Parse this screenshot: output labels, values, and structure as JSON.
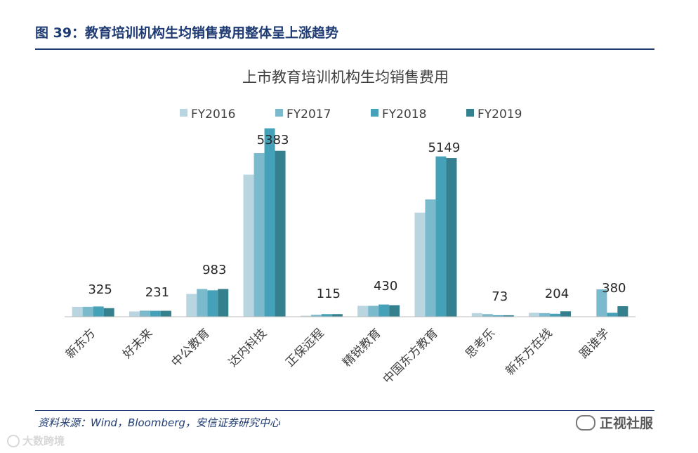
{
  "figure": {
    "title": "图 39：教育培训机构生均销售费用整体呈上涨趋势",
    "source": "资料来源：Wind，Bloomberg，安信证券研究中心"
  },
  "watermarks": {
    "right": "正视社服",
    "left": "大数跨境"
  },
  "colors": {
    "FY2016": "#b9d6e0",
    "FY2017": "#7bbacd",
    "FY2018": "#45a1b7",
    "FY2019": "#35808f",
    "axis": "#bfbfbf",
    "text": "#404040"
  },
  "chart_data": {
    "type": "bar",
    "title": "上市教育培训机构生均销售费用",
    "categories": [
      "新东方",
      "好未来",
      "中公教育",
      "达内科技",
      "正保远程",
      "精锐教育",
      "中国东方教育",
      "思考乐",
      "新东方在线",
      "跟谁学"
    ],
    "series": [
      {
        "name": "FY2016",
        "values": [
          300,
          160,
          690,
          4300,
          30,
          330,
          3150,
          110,
          120,
          0
        ]
      },
      {
        "name": "FY2017",
        "values": [
          300,
          185,
          840,
          4950,
          60,
          330,
          3550,
          80,
          110,
          830
        ]
      },
      {
        "name": "FY2018",
        "values": [
          310,
          180,
          800,
          5700,
          80,
          370,
          4850,
          45,
          90,
          120
        ]
      },
      {
        "name": "FY2019",
        "values": [
          260,
          180,
          840,
          5020,
          80,
          350,
          4800,
          45,
          165,
          320
        ]
      }
    ],
    "data_labels": [
      "325",
      "231",
      "983",
      "5383",
      "115",
      "430",
      "5149",
      "73",
      "204",
      "380"
    ],
    "ylim": [
      0,
      5800
    ],
    "legend_position": "top-center",
    "grid": false
  }
}
